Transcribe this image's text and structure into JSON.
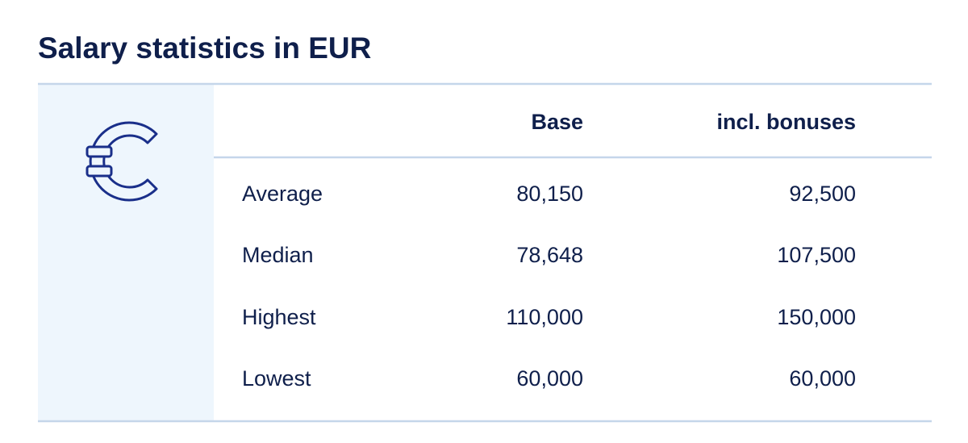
{
  "title": "Salary statistics in EUR",
  "table": {
    "columns": [
      "Base",
      "incl. bonuses"
    ],
    "rows": [
      [
        "Average",
        "80,150",
        "92,500"
      ],
      [
        "Median",
        "78,648",
        "107,500"
      ],
      [
        "Highest",
        "110,000",
        "150,000"
      ],
      [
        "Lowest",
        "60,000",
        "60,000"
      ]
    ]
  }
}
